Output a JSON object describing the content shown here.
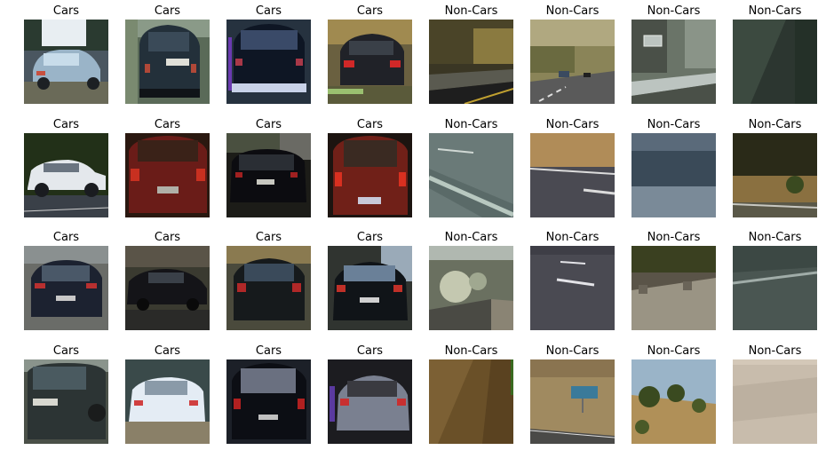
{
  "figure": {
    "rows": [
      {
        "cells": [
          {
            "title": "Cars",
            "subject": "light-blue hatchback on road",
            "palette": [
              "#4a5660",
              "#9ab4c8",
              "#6a6a58"
            ]
          },
          {
            "title": "Cars",
            "subject": "dark compact car rear view",
            "palette": [
              "#5a6a58",
              "#23303a",
              "#8a9a88"
            ]
          },
          {
            "title": "Cars",
            "subject": "blurred dark car rear view",
            "palette": [
              "#26323f",
              "#0e1624",
              "#c8d2e8"
            ]
          },
          {
            "title": "Cars",
            "subject": "dark car rear with tail lights",
            "palette": [
              "#6a6040",
              "#202228",
              "#a08a50"
            ]
          },
          {
            "title": "Non-Cars",
            "subject": "road with guardrail and trees",
            "palette": [
              "#3a3624",
              "#8a7a40",
              "#5a5a50"
            ]
          },
          {
            "title": "Non-Cars",
            "subject": "hillside highway",
            "palette": [
              "#8a8458",
              "#5a5a5a",
              "#b0a880"
            ]
          },
          {
            "title": "Non-Cars",
            "subject": "road sign and barrier",
            "palette": [
              "#6a7468",
              "#bcc4c0",
              "#4a5048"
            ]
          },
          {
            "title": "Non-Cars",
            "subject": "dark green blur",
            "palette": [
              "#2c3630",
              "#3c4a40",
              "#243028"
            ]
          }
        ]
      },
      {
        "cells": [
          {
            "title": "Cars",
            "subject": "white SUV side view",
            "palette": [
              "#223018",
              "#e4e8ec",
              "#3a4048"
            ]
          },
          {
            "title": "Cars",
            "subject": "red car rear view",
            "palette": [
              "#2a1810",
              "#6a1c18",
              "#3a2218"
            ]
          },
          {
            "title": "Cars",
            "subject": "black car rear view",
            "palette": [
              "#1c1c18",
              "#0c0c10",
              "#6a6a64"
            ]
          },
          {
            "title": "Cars",
            "subject": "red SUV rear view",
            "palette": [
              "#1c1410",
              "#702018",
              "#3a2a22"
            ]
          },
          {
            "title": "Non-Cars",
            "subject": "road lane markings",
            "palette": [
              "#6a7a78",
              "#5a6a68",
              "#b8c8c0"
            ]
          },
          {
            "title": "Non-Cars",
            "subject": "road edge with dry grass",
            "palette": [
              "#b08c58",
              "#4a4a52",
              "#dcdcdc"
            ]
          },
          {
            "title": "Non-Cars",
            "subject": "distant hillside",
            "palette": [
              "#5a6a7a",
              "#3a4a58",
              "#7a8a98"
            ]
          },
          {
            "title": "Non-Cars",
            "subject": "trees and dirt roadside",
            "palette": [
              "#2a2a18",
              "#8a7040",
              "#5a5848"
            ]
          }
        ]
      },
      {
        "cells": [
          {
            "title": "Cars",
            "subject": "dark sedan rear view",
            "palette": [
              "#6a6c68",
              "#1c2230",
              "#8a9090"
            ]
          },
          {
            "title": "Cars",
            "subject": "black car side view",
            "palette": [
              "#3a3a30",
              "#141418",
              "#5a5448"
            ]
          },
          {
            "title": "Cars",
            "subject": "dark car rear blurred",
            "palette": [
              "#4a4a3c",
              "#161a1c",
              "#8a7a50"
            ]
          },
          {
            "title": "Cars",
            "subject": "black sedan rear",
            "palette": [
              "#303430",
              "#101418",
              "#9aaab8"
            ]
          },
          {
            "title": "Non-Cars",
            "subject": "shrubs and concrete",
            "palette": [
              "#6a7060",
              "#c4c8b0",
              "#4a4a44"
            ]
          },
          {
            "title": "Non-Cars",
            "subject": "asphalt with dashed lines",
            "palette": [
              "#4a4a52",
              "#3e3e46",
              "#e4e4e8"
            ]
          },
          {
            "title": "Non-Cars",
            "subject": "concrete barrier and trees",
            "palette": [
              "#3a4020",
              "#9a9484",
              "#5a5448"
            ]
          },
          {
            "title": "Non-Cars",
            "subject": "road surface with lane line",
            "palette": [
              "#3c4844",
              "#4a5652",
              "#a0aca8"
            ]
          }
        ]
      },
      {
        "cells": [
          {
            "title": "Cars",
            "subject": "dark car front view",
            "palette": [
              "#4a5048",
              "#2c3434",
              "#8a948c"
            ]
          },
          {
            "title": "Cars",
            "subject": "white car rear view",
            "palette": [
              "#3a4a4a",
              "#e4ecf4",
              "#8a8068"
            ]
          },
          {
            "title": "Cars",
            "subject": "black SUV rear view",
            "palette": [
              "#1c2028",
              "#0c0e14",
              "#6a7080"
            ]
          },
          {
            "title": "Cars",
            "subject": "silver car rear blurred",
            "palette": [
              "#1c1c20",
              "#7a8090",
              "#3a3a40"
            ]
          },
          {
            "title": "Non-Cars",
            "subject": "brown blurred texture",
            "palette": [
              "#6a5028",
              "#7c6034",
              "#5a4220"
            ]
          },
          {
            "title": "Non-Cars",
            "subject": "hillside with blue road sign",
            "palette": [
              "#a08a60",
              "#3a7a9a",
              "#4a4a48"
            ]
          },
          {
            "title": "Non-Cars",
            "subject": "trees on dry hillside with sky",
            "palette": [
              "#9ab4c8",
              "#3a4a20",
              "#b09058"
            ]
          },
          {
            "title": "Non-Cars",
            "subject": "pale sandy surface",
            "palette": [
              "#c8bcac",
              "#bcb0a0",
              "#d4c8b8"
            ]
          }
        ]
      }
    ]
  }
}
